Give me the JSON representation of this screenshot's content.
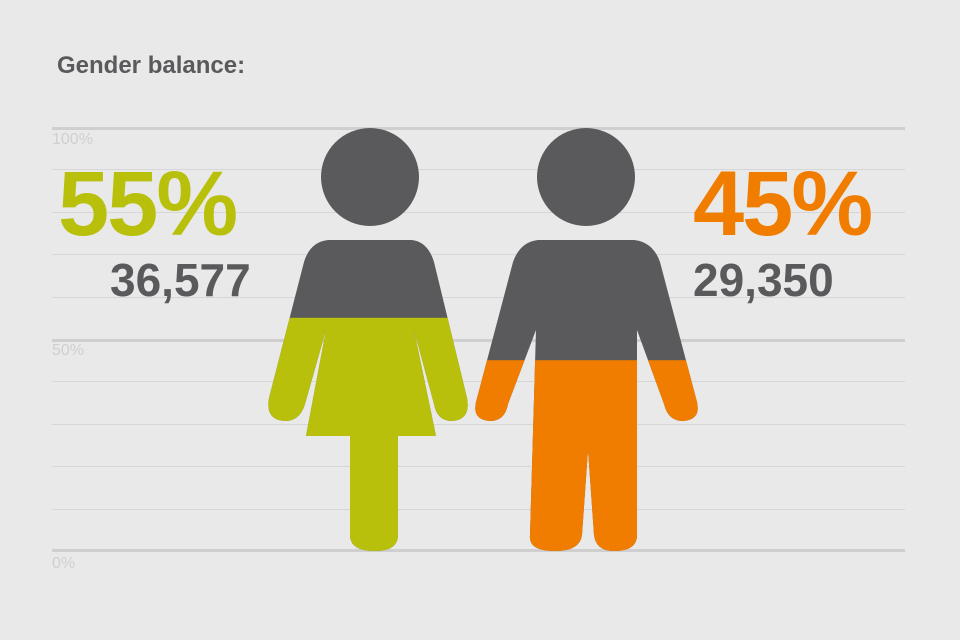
{
  "title": "Gender balance:",
  "colors": {
    "female": "#b9c00b",
    "male": "#f07d00",
    "neutral": "#5a595c",
    "background": "#e9e9e9",
    "grid": "#d3d3d3"
  },
  "chart_data": {
    "type": "pictogram",
    "title": "Gender balance:",
    "y_ticks": [
      "100%",
      "50%",
      "0%"
    ],
    "ylim": [
      0,
      100
    ],
    "grid": true,
    "series": [
      {
        "name": "female",
        "percent_label": "55%",
        "count_label": "36,577",
        "value": 55,
        "count": 36577,
        "color": "#b9c00b"
      },
      {
        "name": "male",
        "percent_label": "45%",
        "count_label": "29,350",
        "value": 45,
        "count": 29350,
        "color": "#f07d00"
      }
    ]
  }
}
